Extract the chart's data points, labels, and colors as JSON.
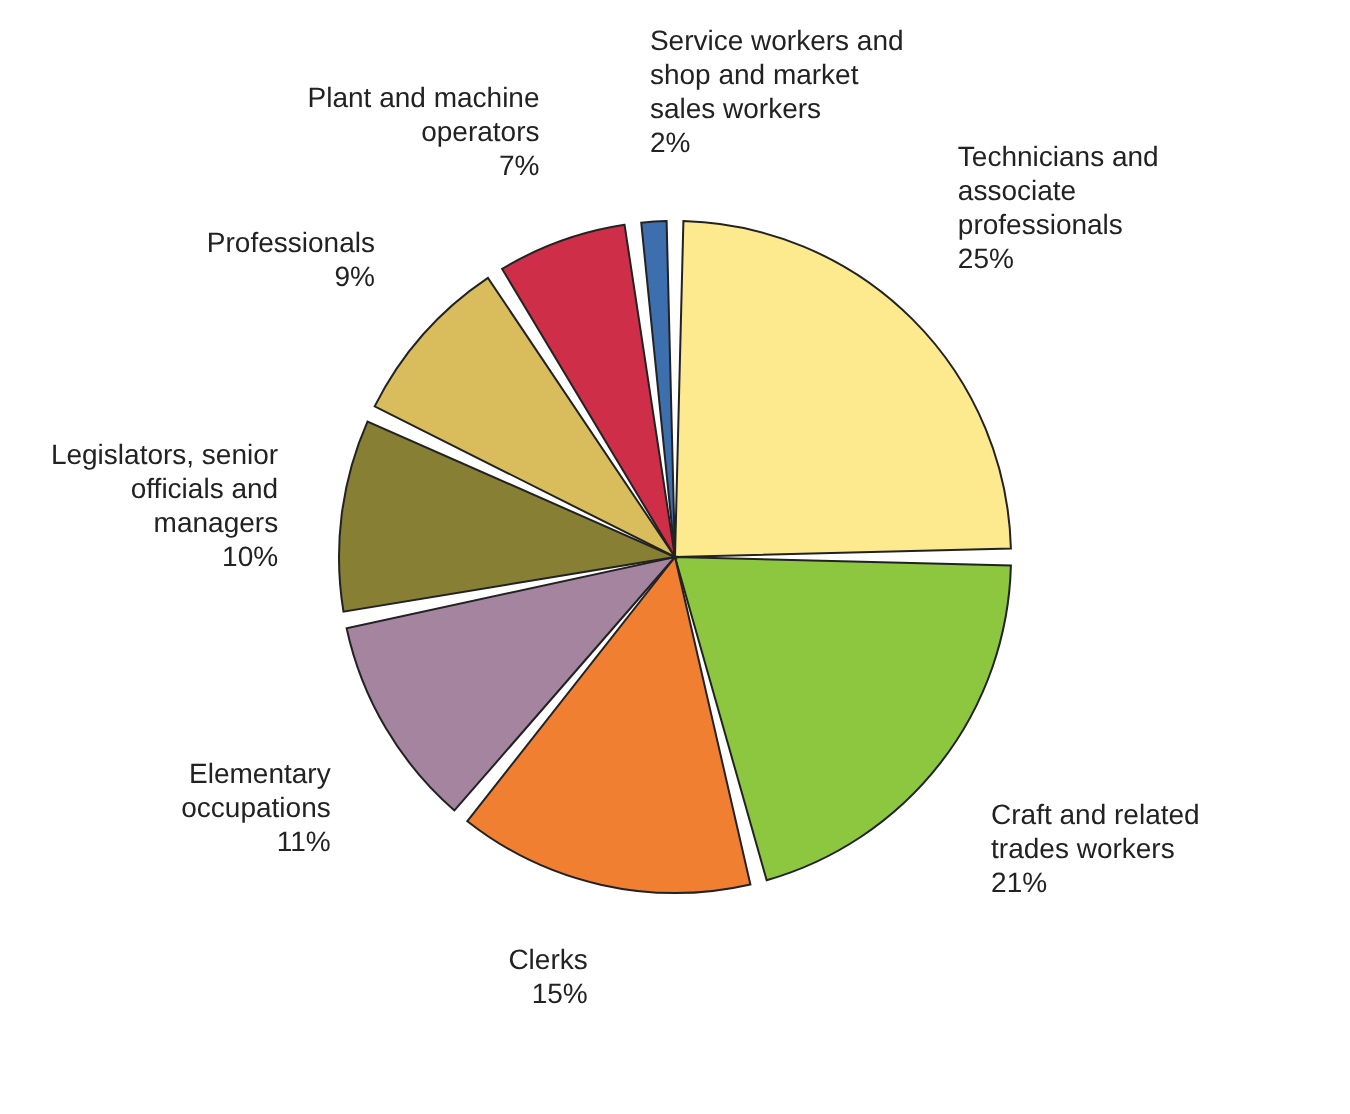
{
  "chart_data": {
    "type": "pie",
    "categories": [
      "Technicians and associate professionals",
      "Craft and related trades workers",
      "Clerks",
      "Elementary occupations",
      "Legislators, senior officials and managers",
      "Professionals",
      "Plant and machine operators",
      "Service workers and shop and market sales workers"
    ],
    "values": [
      25,
      21,
      15,
      11,
      10,
      9,
      7,
      2
    ],
    "value_labels": [
      "25%",
      "21%",
      "15%",
      "11%",
      "10%",
      "9%",
      "7%",
      "2%"
    ],
    "colors": [
      "#fde98e",
      "#8dc63f",
      "#f07f32",
      "#a5849f",
      "#867f34",
      "#d9bd5c",
      "#cf2e48",
      "#3d6fae"
    ]
  }
}
